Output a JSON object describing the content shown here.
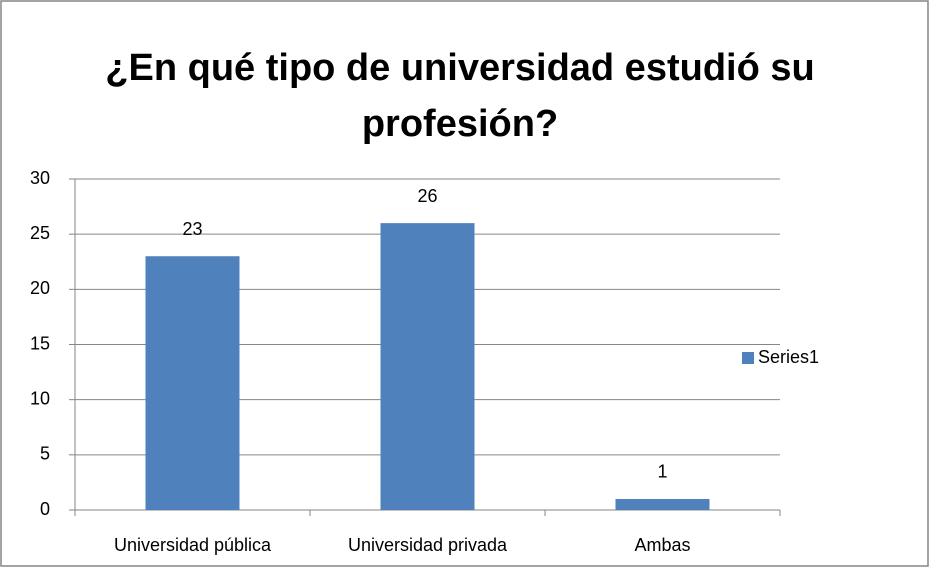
{
  "chart_data": {
    "type": "bar",
    "title": "¿En qué tipo de universidad estudió su profesión?",
    "categories": [
      "Universidad pública",
      "Universidad privada",
      "Ambas"
    ],
    "series": [
      {
        "name": "Series1",
        "color": "#4f81bd",
        "values": [
          23,
          26,
          1
        ]
      }
    ],
    "ylim": [
      0,
      30
    ],
    "yticks": [
      0,
      5,
      10,
      15,
      20,
      25,
      30
    ],
    "grid": true,
    "legend": "right"
  }
}
